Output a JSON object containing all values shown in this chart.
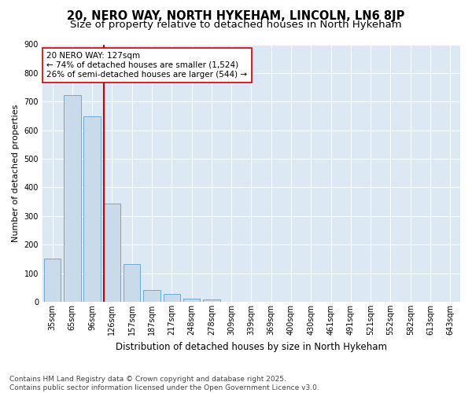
{
  "title1": "20, NERO WAY, NORTH HYKEHAM, LINCOLN, LN6 8JP",
  "title2": "Size of property relative to detached houses in North Hykeham",
  "xlabel": "Distribution of detached houses by size in North Hykeham",
  "ylabel": "Number of detached properties",
  "categories": [
    "35sqm",
    "65sqm",
    "96sqm",
    "126sqm",
    "157sqm",
    "187sqm",
    "217sqm",
    "248sqm",
    "278sqm",
    "309sqm",
    "339sqm",
    "369sqm",
    "400sqm",
    "430sqm",
    "461sqm",
    "491sqm",
    "521sqm",
    "552sqm",
    "582sqm",
    "613sqm",
    "643sqm"
  ],
  "values": [
    150,
    722,
    648,
    342,
    132,
    40,
    28,
    12,
    8,
    0,
    0,
    0,
    0,
    0,
    0,
    0,
    0,
    0,
    0,
    0,
    0
  ],
  "bar_color": "#c9daea",
  "bar_edge_color": "#6aaad4",
  "vline_color": "#cc0000",
  "vline_pos": 2.6,
  "annotation_text": "20 NERO WAY: 127sqm\n← 74% of detached houses are smaller (1,524)\n26% of semi-detached houses are larger (544) →",
  "annotation_box_color": "#ffffff",
  "annotation_edge_color": "#cc0000",
  "ylim": [
    0,
    900
  ],
  "yticks": [
    0,
    100,
    200,
    300,
    400,
    500,
    600,
    700,
    800,
    900
  ],
  "footer": "Contains HM Land Registry data © Crown copyright and database right 2025.\nContains public sector information licensed under the Open Government Licence v3.0.",
  "background_color": "#ffffff",
  "plot_background_color": "#dce9f5",
  "grid_color": "#ffffff",
  "title1_fontsize": 10.5,
  "title2_fontsize": 9.5,
  "tick_fontsize": 7,
  "annotation_fontsize": 7.5,
  "ylabel_fontsize": 8,
  "xlabel_fontsize": 8.5,
  "footer_fontsize": 6.5
}
